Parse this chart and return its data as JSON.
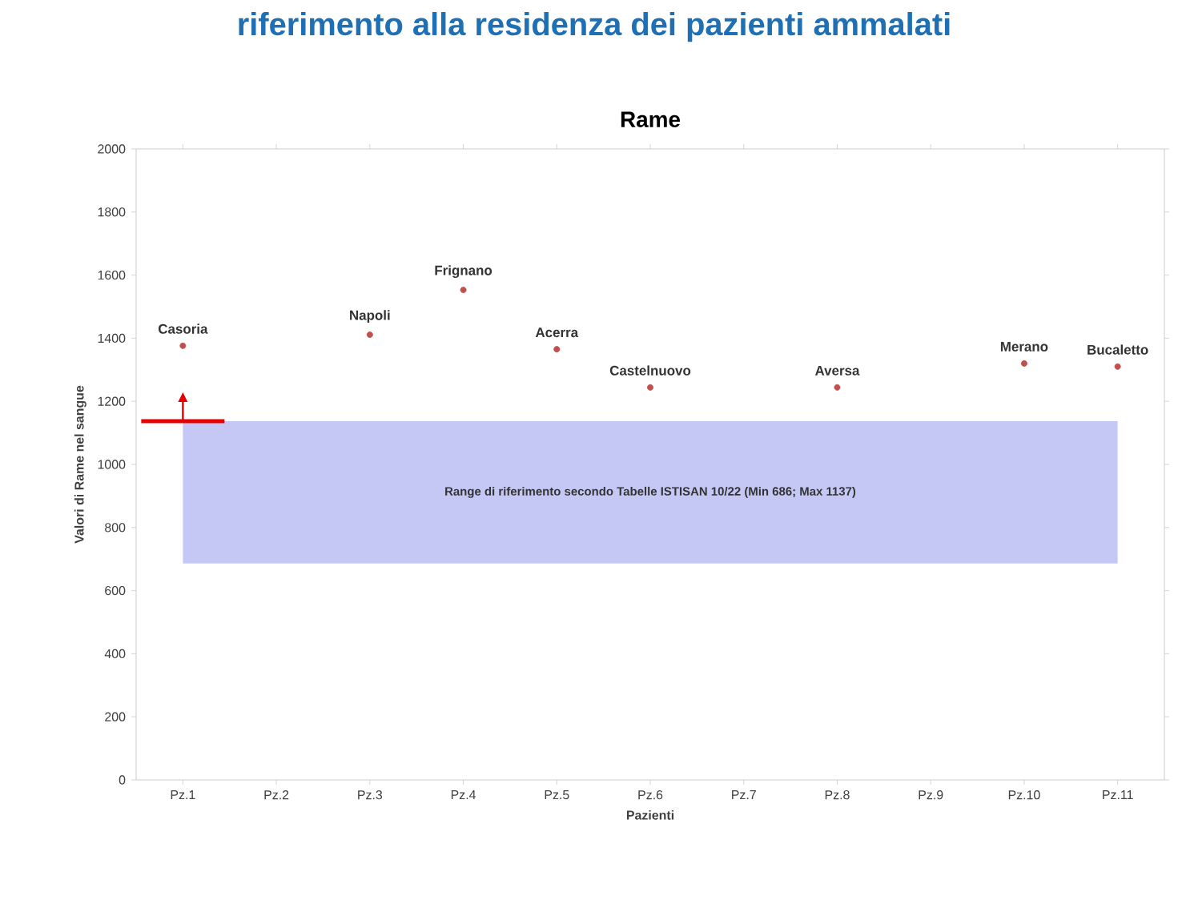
{
  "chart_data": {
    "type": "scatter",
    "title": "Rame",
    "xlabel": "Pazienti",
    "ylabel": "Valori di Rame nel sangue",
    "categories": [
      "Pz.1",
      "Pz.2",
      "Pz.3",
      "Pz.4",
      "Pz.5",
      "Pz.6",
      "Pz.7",
      "Pz.8",
      "Pz.9",
      "Pz.10",
      "Pz.11"
    ],
    "series": [
      {
        "color": "#c0504d",
        "values": [
          1376,
          null,
          1411,
          1553,
          1365,
          1244,
          null,
          1244,
          null,
          1320,
          1310
        ]
      }
    ],
    "ylim": [
      0,
      2000
    ],
    "yticks": [
      0,
      200,
      400,
      600,
      800,
      1000,
      1200,
      1400,
      1600,
      1800,
      2000
    ],
    "bands": [
      {
        "axis": "y",
        "from": 686,
        "to": 1137,
        "color": "#c5c8f5",
        "label": "Range di riferimento secondo Tabelle ISTISAN 10/22 (Min 686; Max 1137)"
      }
    ],
    "annotations": [
      "riferimento alla residenza dei pazienti ammalati",
      {
        "text": "Casoria",
        "x": "Pz.1",
        "y": 1376
      },
      {
        "text": "Napoli",
        "x": "Pz.3",
        "y": 1411
      },
      {
        "text": "Frignano",
        "x": "Pz.4",
        "y": 1553
      },
      {
        "text": "Acerra",
        "x": "Pz.5",
        "y": 1365
      },
      {
        "text": "Castelnuovo",
        "x": "Pz.6",
        "y": 1244
      },
      {
        "text": "Aversa",
        "x": "Pz.8",
        "y": 1244
      },
      {
        "text": "Merano",
        "x": "Pz.10",
        "y": 1320
      },
      {
        "text": "Bucaletto",
        "x": "Pz.11",
        "y": 1310
      }
    ]
  }
}
